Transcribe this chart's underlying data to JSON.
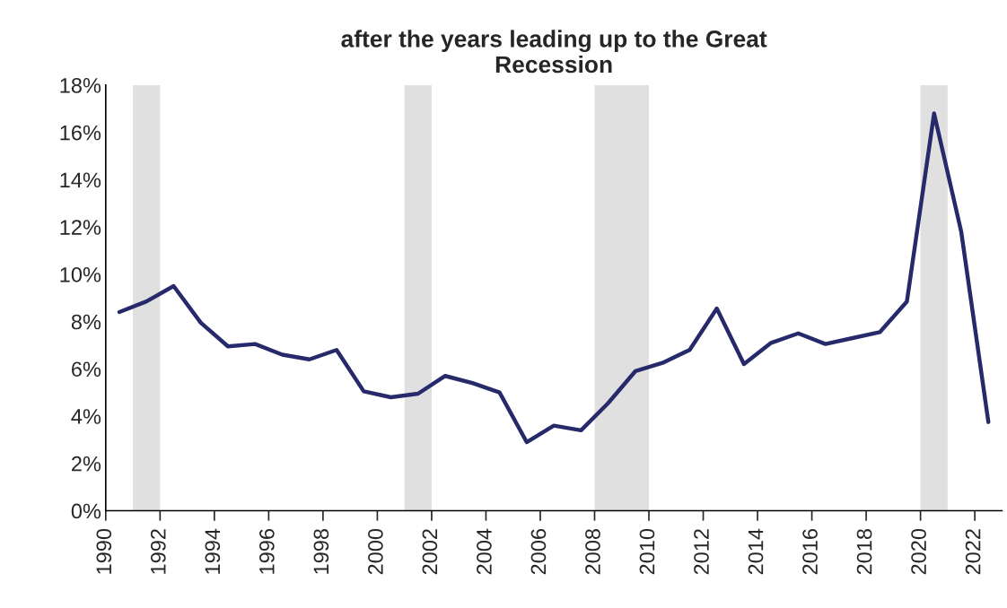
{
  "chart_data": {
    "type": "line",
    "title": "after the years leading up to the Great\nRecession",
    "x": [
      1990.5,
      1991.5,
      1992.5,
      1993.5,
      1994.5,
      1995.5,
      1996.5,
      1997.5,
      1998.5,
      1999.5,
      2000.5,
      2001.5,
      2002.5,
      2003.5,
      2004.5,
      2005.5,
      2006.5,
      2007.5,
      2008.5,
      2009.5,
      2010.5,
      2011.5,
      2012.5,
      2013.5,
      2014.5,
      2015.5,
      2016.5,
      2017.5,
      2018.5,
      2019.5,
      2020.5,
      2021.5,
      2022.5
    ],
    "series": [
      {
        "color": "#262a6b",
        "values": [
          8.4,
          8.85,
          9.5,
          7.95,
          6.95,
          7.05,
          6.6,
          6.4,
          6.8,
          5.05,
          4.8,
          4.95,
          5.7,
          5.4,
          5.0,
          2.9,
          3.6,
          3.4,
          4.55,
          5.9,
          6.25,
          6.8,
          8.55,
          6.2,
          7.1,
          7.5,
          7.05,
          7.3,
          7.55,
          8.85,
          16.8,
          11.8,
          3.75
        ]
      }
    ],
    "xlim": [
      1990,
      2023
    ],
    "xticks": [
      1990,
      1992,
      1994,
      1996,
      1998,
      2000,
      2002,
      2004,
      2006,
      2008,
      2010,
      2012,
      2014,
      2016,
      2018,
      2020,
      2022
    ],
    "ylim": [
      0,
      18
    ],
    "yticks": [
      {
        "value": 0,
        "label": "0%"
      },
      {
        "value": 2,
        "label": "2%"
      },
      {
        "value": 4,
        "label": "4%"
      },
      {
        "value": 6,
        "label": "6%"
      },
      {
        "value": 8,
        "label": "8%"
      },
      {
        "value": 10,
        "label": "10%"
      },
      {
        "value": 12,
        "label": "12%"
      },
      {
        "value": 14,
        "label": "14%"
      },
      {
        "value": 16,
        "label": "16%"
      },
      {
        "value": 18,
        "label": "18%"
      }
    ],
    "bands": [
      {
        "axis": "x",
        "from": 1991,
        "to": 1992,
        "color": "#e0e0e0"
      },
      {
        "axis": "x",
        "from": 2001,
        "to": 2002,
        "color": "#e0e0e0"
      },
      {
        "axis": "x",
        "from": 2008,
        "to": 2010,
        "color": "#e0e0e0"
      },
      {
        "axis": "x",
        "from": 2020,
        "to": 2021,
        "color": "#e0e0e0"
      }
    ],
    "grid": false,
    "legend": false
  }
}
